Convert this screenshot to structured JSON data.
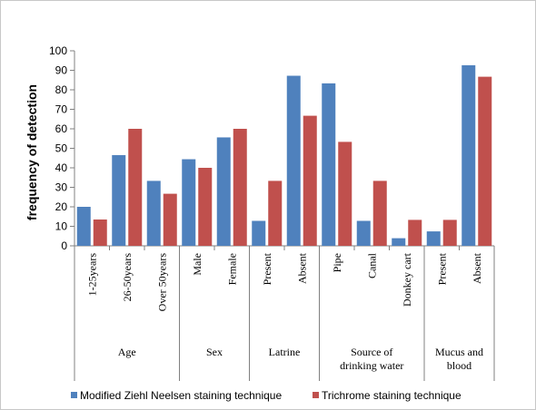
{
  "chart_data": {
    "type": "bar",
    "ylabel": "frequency of detection",
    "xlabel": "",
    "title": "",
    "ylim": [
      0,
      100
    ],
    "yticks": [
      0,
      10,
      20,
      30,
      40,
      50,
      60,
      70,
      80,
      90,
      100
    ],
    "grid": false,
    "legend_position": "bottom",
    "categories": [
      "1-25years",
      "26-50years",
      "Over 50years",
      "Male",
      "Female",
      "Present",
      "Absent",
      "Pipe",
      "Canal",
      "Donkey cart",
      "Present",
      "Absent"
    ],
    "groups": [
      {
        "label": "Age",
        "count": 3
      },
      {
        "label": "Sex",
        "count": 2
      },
      {
        "label": "Latrine",
        "count": 2
      },
      {
        "label": "Source of drinking water",
        "count": 3
      },
      {
        "label": "Mucus and blood",
        "count": 2
      }
    ],
    "series": [
      {
        "name": "Modified Ziehl Neelsen staining technique",
        "color": "#4f81bd",
        "values": [
          20,
          46.5,
          33.3,
          44.4,
          55.6,
          12.8,
          87.2,
          83.3,
          12.8,
          3.9,
          7.4,
          92.6
        ]
      },
      {
        "name": "Trichrome staining technique",
        "color": "#c0504d",
        "values": [
          13.5,
          60,
          26.7,
          40,
          60,
          33.3,
          66.7,
          53.3,
          33.3,
          13.3,
          13.3,
          86.7
        ]
      }
    ]
  }
}
